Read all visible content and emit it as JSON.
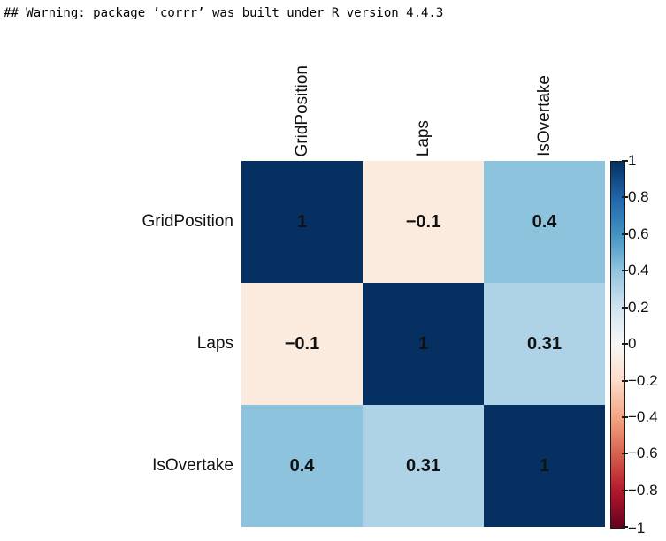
{
  "console": {
    "warning_text": "## Warning: package ’corrr’ was built under R version 4.4.3"
  },
  "chart_data": {
    "type": "heatmap",
    "title": "",
    "variables": [
      "GridPosition",
      "Laps",
      "IsOvertake"
    ],
    "matrix": [
      [
        1,
        -0.1,
        0.4
      ],
      [
        -0.1,
        1,
        0.31
      ],
      [
        0.4,
        0.31,
        1
      ]
    ],
    "cell_labels": [
      [
        "1",
        "−0.1",
        "0.4"
      ],
      [
        "−0.1",
        "1",
        "0.31"
      ],
      [
        "0.4",
        "0.31",
        "1"
      ]
    ],
    "cell_colors": [
      [
        "#053061",
        "#fbeade",
        "#8ec3de"
      ],
      [
        "#fbeade",
        "#053061",
        "#aed2e6"
      ],
      [
        "#8ec3de",
        "#aed2e6",
        "#053061"
      ]
    ],
    "colorbar": {
      "range": [
        -1,
        1
      ],
      "tick_labels": [
        "1",
        "0.8",
        "0.6",
        "0.4",
        "0.2",
        "0",
        "−0.2",
        "−0.4",
        "−0.6",
        "−0.8",
        "−1"
      ],
      "gradient_stops": [
        "#053061",
        "#2166ac",
        "#4393c3",
        "#92c5de",
        "#d1e5f0",
        "#f7f7f7",
        "#fddbc7",
        "#f4a582",
        "#d6604d",
        "#b2182b",
        "#67001f"
      ]
    }
  }
}
